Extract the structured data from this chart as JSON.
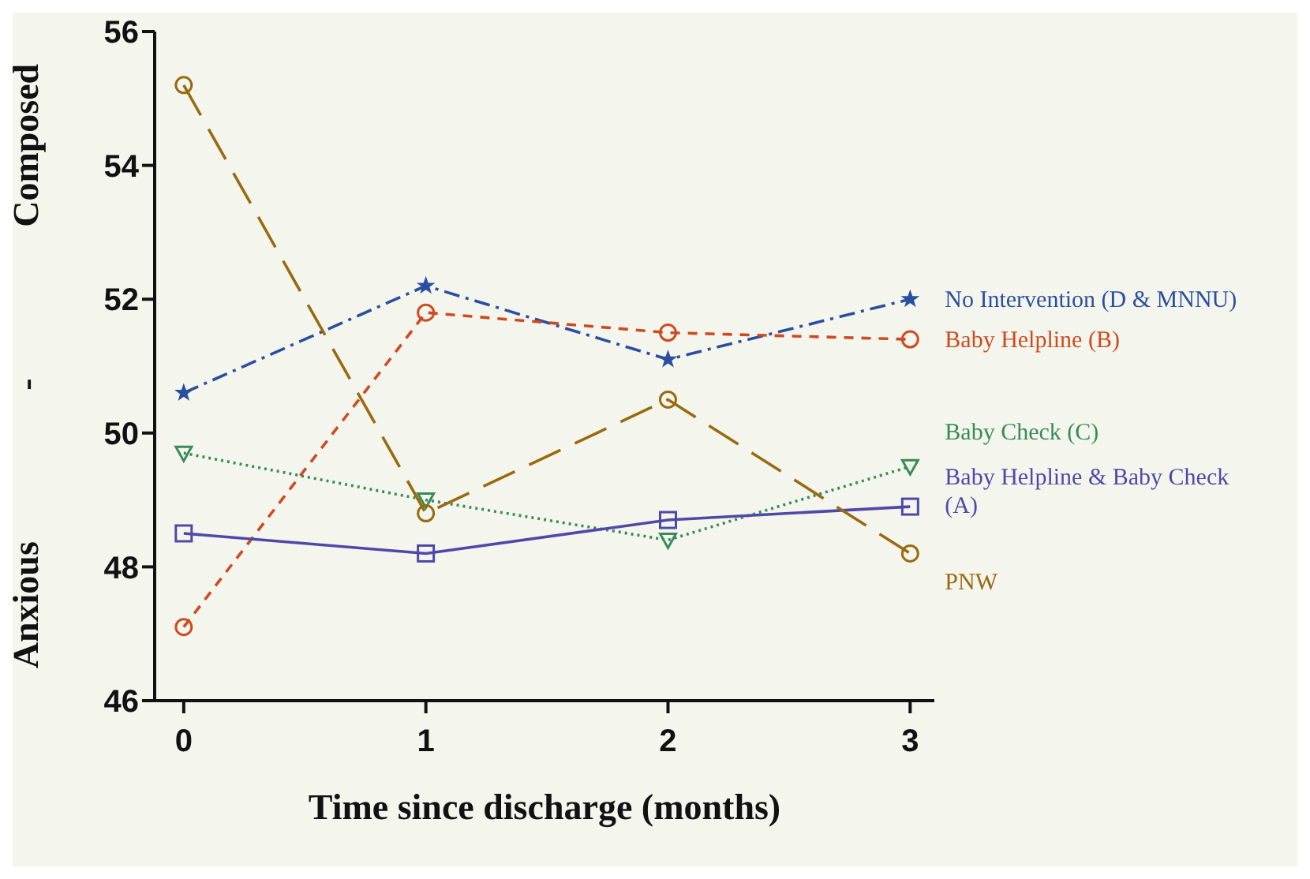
{
  "chart_data": {
    "type": "line",
    "xlabel": "Time since discharge (months)",
    "ylabel": "Anxious - Composed",
    "x": [
      0,
      1,
      2,
      3
    ],
    "xlim": [
      -0.12,
      3.1
    ],
    "xticks": [
      0,
      1,
      2,
      3
    ],
    "ylim": [
      46,
      56
    ],
    "yticks": [
      46,
      48,
      50,
      52,
      54,
      56
    ],
    "grid": false,
    "legend": false,
    "series": [
      {
        "name": "No Intervention (D & MNNU)",
        "color": "#2b4fa0",
        "values": [
          50.6,
          52.2,
          51.1,
          52.0
        ],
        "marker": "star",
        "line_style": "dashdot"
      },
      {
        "name": "Baby Helpline (B)",
        "color": "#d04a20",
        "values": [
          47.1,
          51.8,
          51.5,
          51.4
        ],
        "marker": "circle",
        "line_style": "dashed"
      },
      {
        "name": "Baby Check (C)",
        "color": "#3a8a5a",
        "values": [
          49.7,
          49.0,
          48.4,
          49.5
        ],
        "marker": "triangle",
        "line_style": "dotted"
      },
      {
        "name": "Baby Helpline & Baby Check (A)",
        "color": "#5048a8",
        "values": [
          48.5,
          48.2,
          48.7,
          48.9
        ],
        "marker": "square",
        "line_style": "solid"
      },
      {
        "name": "PNW",
        "color": "#9a6a10",
        "values": [
          55.2,
          48.8,
          50.5,
          48.2
        ],
        "marker": "circle",
        "line_style": "longdash"
      }
    ]
  }
}
